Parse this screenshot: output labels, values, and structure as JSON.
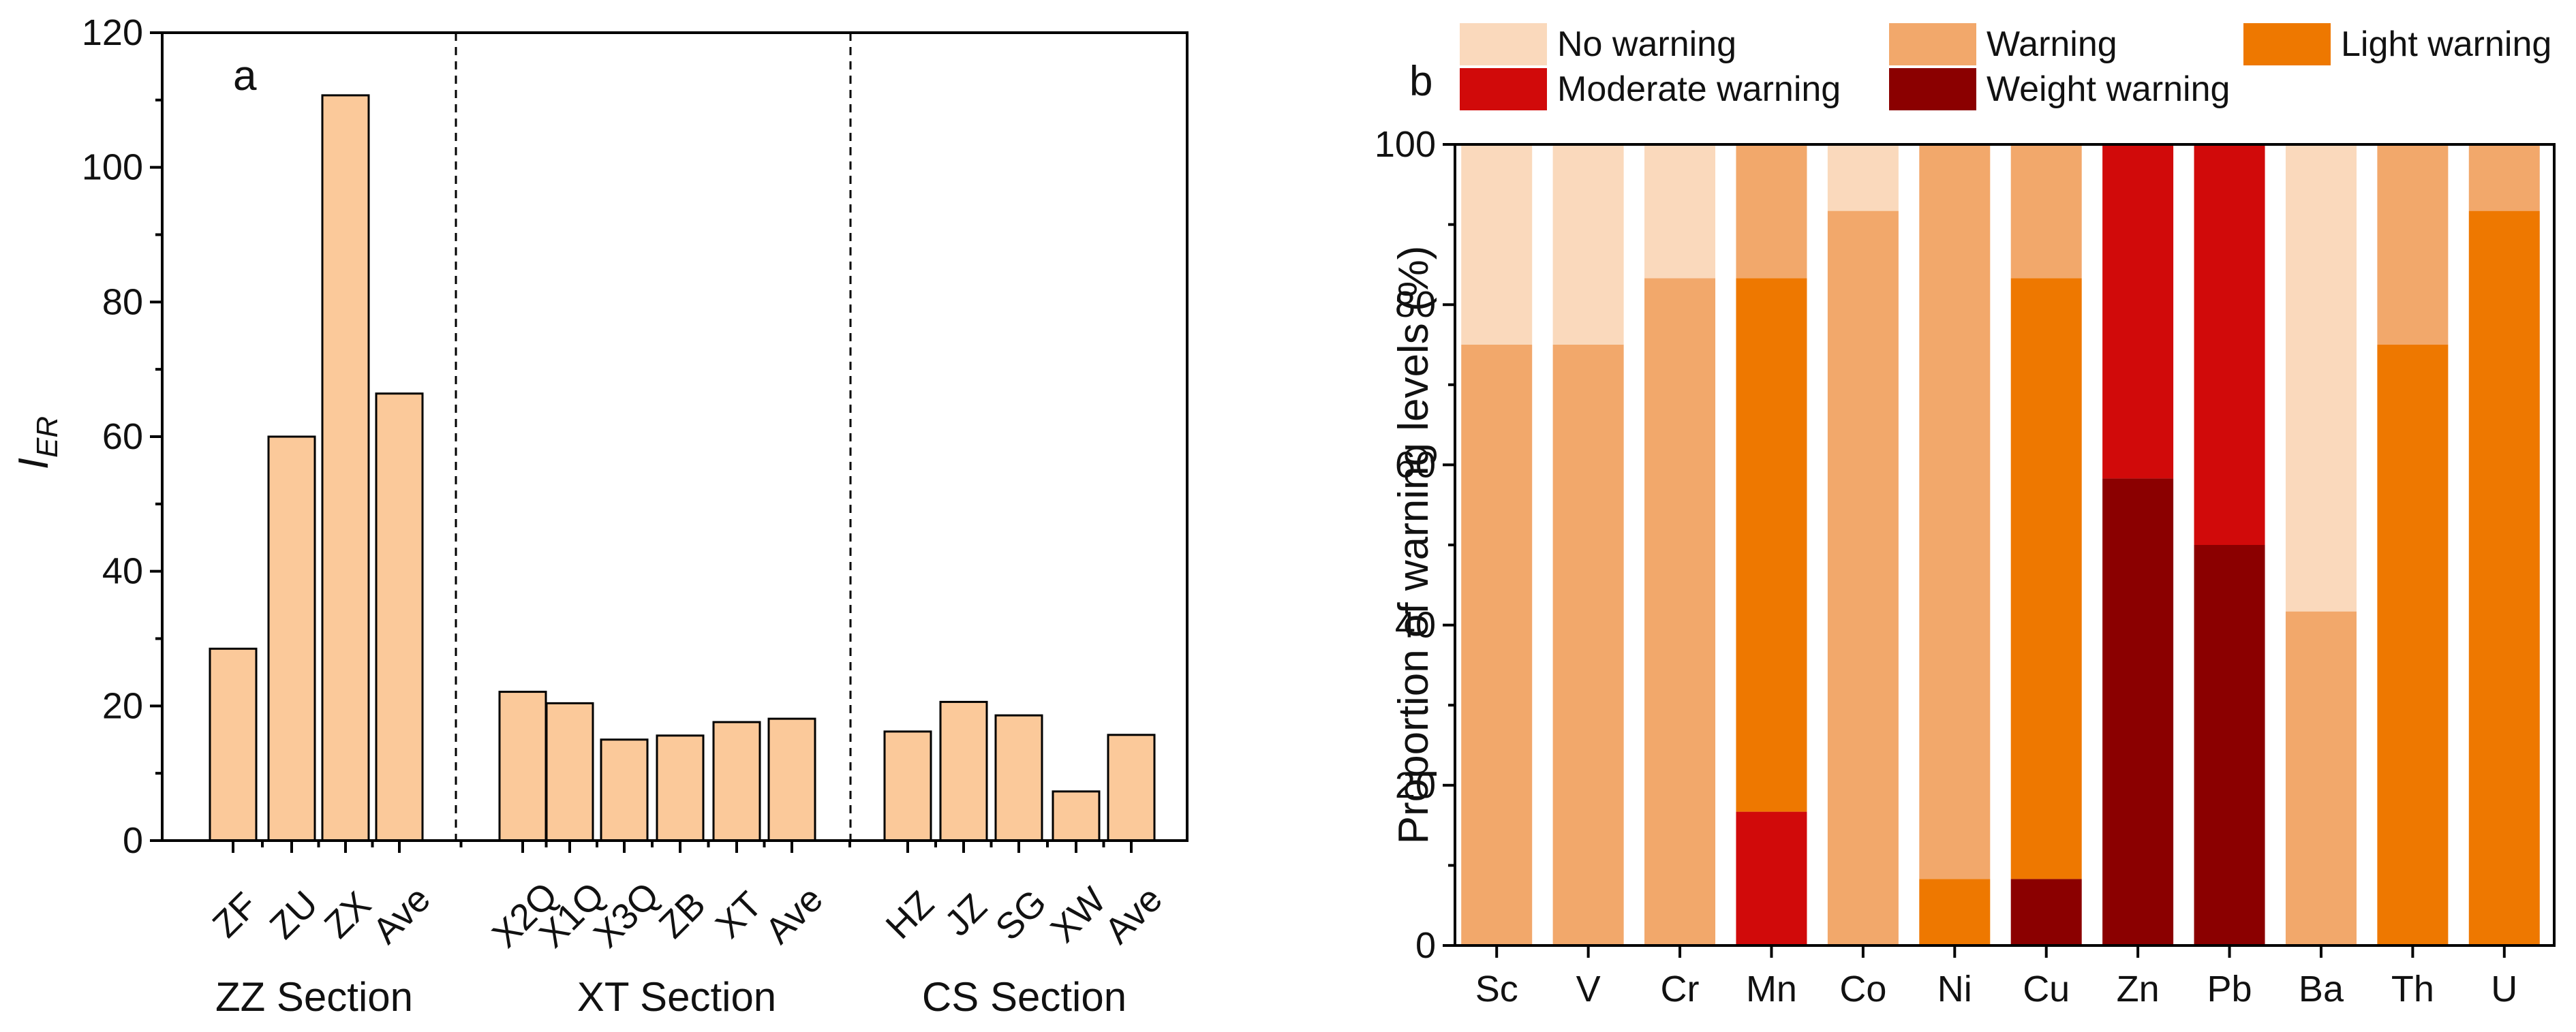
{
  "chart_data": [
    {
      "type": "bar",
      "panel_label": "a",
      "title": "",
      "ylabel_main": "I",
      "ylabel_sub": "ER",
      "xlabel": "",
      "ylim": [
        0,
        120
      ],
      "yticks": [
        0,
        20,
        40,
        60,
        80,
        100,
        120
      ],
      "grid": false,
      "bar_color": "#FBC99A",
      "groups": [
        {
          "name": "ZZ Section",
          "categories": [
            "ZF",
            "ZU",
            "ZX",
            "Ave"
          ],
          "values": [
            28.5,
            60.0,
            110.7,
            66.4
          ]
        },
        {
          "name": "XT Section",
          "categories": [
            "X2Q",
            "X1Q",
            "X3Q",
            "ZB",
            "XT",
            "Ave"
          ],
          "values": [
            22.1,
            20.4,
            15.0,
            15.6,
            17.6,
            18.1
          ]
        },
        {
          "name": "CS Section",
          "categories": [
            "HZ",
            "JZ",
            "SG",
            "XW",
            "Ave"
          ],
          "values": [
            16.2,
            20.6,
            18.6,
            7.3,
            15.7
          ]
        }
      ]
    },
    {
      "type": "bar",
      "stacked": true,
      "panel_label": "b",
      "title": "",
      "ylabel": "Proportion of warning levels (%)",
      "xlabel": "",
      "ylim": [
        0,
        100
      ],
      "yticks": [
        0,
        20,
        40,
        60,
        80,
        100
      ],
      "grid": false,
      "legend_position": "top",
      "categories": [
        "Sc",
        "V",
        "Cr",
        "Mn",
        "Co",
        "Ni",
        "Cu",
        "Zn",
        "Pb",
        "Ba",
        "Th",
        "U"
      ],
      "series": [
        {
          "name": "Weight warning",
          "color": "#8B0000",
          "values": [
            0,
            0,
            0,
            0,
            0,
            0,
            8.3,
            58.3,
            50.0,
            0,
            0,
            0
          ]
        },
        {
          "name": "Moderate warning",
          "color": "#D10A0A",
          "values": [
            0,
            0,
            0,
            16.7,
            0,
            0,
            0,
            41.7,
            50.0,
            0,
            0,
            0
          ]
        },
        {
          "name": "Light warning",
          "color": "#EE7800",
          "values": [
            0,
            0,
            0,
            66.6,
            0,
            8.3,
            75.0,
            0,
            0,
            0,
            75.0,
            91.7
          ]
        },
        {
          "name": "Warning",
          "color": "#F2A86B",
          "values": [
            75.0,
            75.0,
            83.3,
            16.7,
            91.7,
            91.7,
            16.7,
            0,
            0,
            41.7,
            25.0,
            8.3
          ]
        },
        {
          "name": "No warning",
          "color": "#FAD9BC",
          "values": [
            25.0,
            25.0,
            16.7,
            0,
            8.3,
            0,
            0,
            0,
            0,
            58.3,
            0,
            0
          ]
        }
      ],
      "legend_order": [
        "No warning",
        "Warning",
        "Light warning",
        "Moderate warning",
        "Weight warning"
      ]
    }
  ]
}
